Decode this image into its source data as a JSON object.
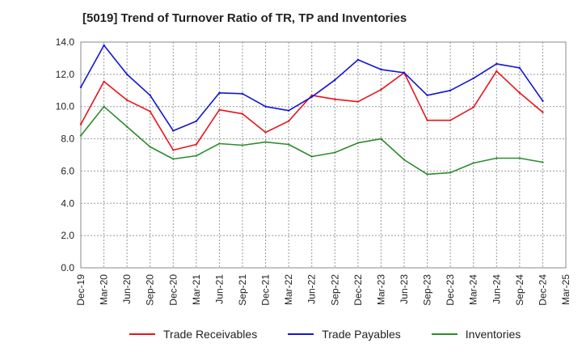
{
  "title": "[5019]  Trend of Turnover Ratio of TR, TP and Inventories",
  "chart_data": {
    "type": "line",
    "categories": [
      "Dec-19",
      "Mar-20",
      "Jun-20",
      "Sep-20",
      "Dec-20",
      "Mar-21",
      "Jun-21",
      "Sep-21",
      "Dec-21",
      "Mar-22",
      "Jun-22",
      "Sep-22",
      "Dec-22",
      "Mar-23",
      "Jun-23",
      "Sep-23",
      "Dec-23",
      "Mar-24",
      "Jun-24",
      "Sep-24",
      "Dec-24",
      "Mar-25"
    ],
    "ylim": [
      0,
      14
    ],
    "yticks": [
      "0.0",
      "2.0",
      "4.0",
      "6.0",
      "8.0",
      "10.0",
      "12.0",
      "14.0"
    ],
    "grid": true,
    "legend_position": "bottom",
    "series": [
      {
        "name": "Trade Receivables",
        "color": "#e8141b",
        "values": [
          8.9,
          11.55,
          10.4,
          9.7,
          7.3,
          7.65,
          9.8,
          9.55,
          8.4,
          9.1,
          10.7,
          10.45,
          10.3,
          11.05,
          12.1,
          9.15,
          9.15,
          9.95,
          12.2,
          10.85,
          9.65,
          null
        ]
      },
      {
        "name": "Trade Payables",
        "color": "#1414d2",
        "values": [
          11.2,
          13.8,
          12.0,
          10.7,
          8.5,
          9.1,
          10.85,
          10.8,
          10.0,
          9.75,
          10.6,
          11.65,
          12.9,
          12.3,
          12.1,
          10.7,
          11.0,
          11.75,
          12.65,
          12.4,
          10.35,
          null
        ]
      },
      {
        "name": "Inventories",
        "color": "#2e8b2e",
        "values": [
          8.2,
          10.0,
          8.75,
          7.5,
          6.75,
          6.95,
          7.7,
          7.6,
          7.8,
          7.65,
          6.9,
          7.15,
          7.75,
          8.0,
          6.7,
          5.8,
          5.9,
          6.5,
          6.8,
          6.8,
          6.55,
          null
        ]
      }
    ]
  }
}
